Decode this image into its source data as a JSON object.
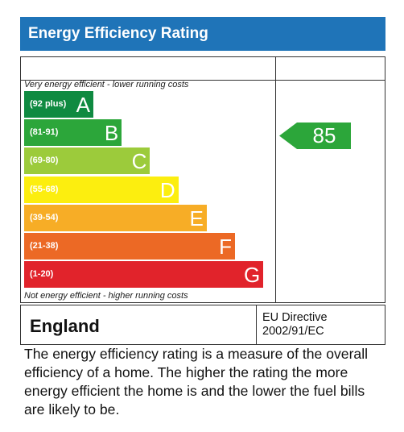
{
  "header": {
    "title": "Energy Efficiency Rating"
  },
  "chart_data": {
    "type": "bar",
    "top_note": "Very energy efficient - lower running costs",
    "bottom_note": "Not energy efficient - higher running costs",
    "bands": [
      {
        "letter": "A",
        "range": "(92 plus)",
        "color": "#0f8a41"
      },
      {
        "letter": "B",
        "range": "(81-91)",
        "color": "#2ca63a"
      },
      {
        "letter": "C",
        "range": "(69-80)",
        "color": "#9ccb3b"
      },
      {
        "letter": "D",
        "range": "(55-68)",
        "color": "#fcee0f"
      },
      {
        "letter": "E",
        "range": "(39-54)",
        "color": "#f7ad26"
      },
      {
        "letter": "F",
        "range": "(21-38)",
        "color": "#ec6925"
      },
      {
        "letter": "G",
        "range": "(1-20)",
        "color": "#e1232b"
      }
    ],
    "current_rating": {
      "value": "85",
      "band": "B",
      "color": "#2ca63a"
    }
  },
  "footer": {
    "country": "England",
    "directive_line1": "EU Directive",
    "directive_line2": "2002/91/EC"
  },
  "description": "The energy efficiency rating is a measure of the overall efficiency of a home. The higher the rating the more energy efficient the home is and the lower the fuel bills are likely to be."
}
